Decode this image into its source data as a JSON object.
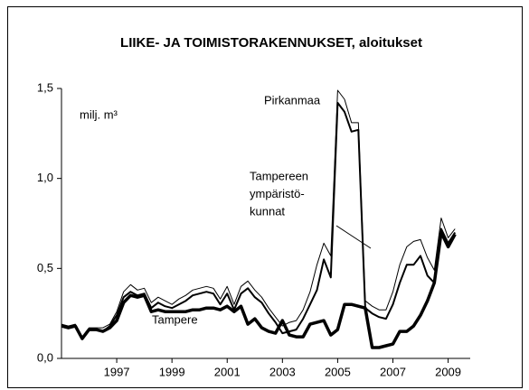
{
  "chart_data": {
    "type": "line",
    "title": "LIIKE- JA TOIMISTORAKENNUKSET, aloitukset",
    "y_unit": "milj. m³",
    "x": [
      1995,
      1995.25,
      1995.5,
      1995.75,
      1996,
      1996.25,
      1996.5,
      1996.75,
      1997,
      1997.25,
      1997.5,
      1997.75,
      1998,
      1998.25,
      1998.5,
      1998.75,
      1999,
      1999.25,
      1999.5,
      1999.75,
      2000,
      2000.25,
      2000.5,
      2000.75,
      2001,
      2001.25,
      2001.5,
      2001.75,
      2002,
      2002.25,
      2002.5,
      2002.75,
      2003,
      2003.25,
      2003.5,
      2003.75,
      2004,
      2004.25,
      2004.5,
      2004.75,
      2005,
      2005.25,
      2005.5,
      2005.75,
      2006,
      2006.25,
      2006.5,
      2006.75,
      2007,
      2007.25,
      2007.5,
      2007.75,
      2008,
      2008.25,
      2008.5,
      2008.75,
      2009,
      2009.25
    ],
    "series": [
      {
        "name": "Pirkanmaa",
        "color": "#000000",
        "width": 1,
        "values": [
          0.19,
          0.18,
          0.19,
          0.12,
          0.17,
          0.17,
          0.17,
          0.19,
          0.26,
          0.37,
          0.41,
          0.38,
          0.39,
          0.31,
          0.34,
          0.32,
          0.3,
          0.33,
          0.35,
          0.38,
          0.39,
          0.4,
          0.39,
          0.33,
          0.4,
          0.3,
          0.4,
          0.43,
          0.38,
          0.34,
          0.28,
          0.23,
          0.18,
          0.2,
          0.21,
          0.27,
          0.37,
          0.52,
          0.64,
          0.57,
          1.49,
          1.44,
          1.31,
          1.31,
          0.32,
          0.29,
          0.27,
          0.27,
          0.37,
          0.52,
          0.62,
          0.65,
          0.66,
          0.56,
          0.49,
          0.78,
          0.67,
          0.72
        ]
      },
      {
        "name": [
          "Tampereen",
          "ympäristö-",
          "kunnat"
        ],
        "color": "#000000",
        "width": 2,
        "values": [
          0.18,
          0.17,
          0.18,
          0.11,
          0.16,
          0.16,
          0.15,
          0.18,
          0.24,
          0.34,
          0.37,
          0.35,
          0.36,
          0.28,
          0.31,
          0.29,
          0.28,
          0.3,
          0.32,
          0.35,
          0.36,
          0.37,
          0.36,
          0.3,
          0.36,
          0.27,
          0.36,
          0.39,
          0.34,
          0.31,
          0.25,
          0.2,
          0.14,
          0.15,
          0.16,
          0.22,
          0.3,
          0.38,
          0.55,
          0.45,
          1.42,
          1.37,
          1.26,
          1.27,
          0.28,
          0.25,
          0.23,
          0.22,
          0.3,
          0.42,
          0.52,
          0.52,
          0.57,
          0.46,
          0.42,
          0.72,
          0.64,
          0.7
        ]
      },
      {
        "name": "Tampere",
        "color": "#000000",
        "width": 3.5,
        "values": [
          0.18,
          0.17,
          0.18,
          0.11,
          0.16,
          0.16,
          0.15,
          0.17,
          0.21,
          0.31,
          0.35,
          0.34,
          0.35,
          0.26,
          0.27,
          0.26,
          0.26,
          0.26,
          0.26,
          0.27,
          0.27,
          0.28,
          0.28,
          0.27,
          0.29,
          0.26,
          0.29,
          0.19,
          0.22,
          0.17,
          0.15,
          0.14,
          0.21,
          0.13,
          0.12,
          0.12,
          0.19,
          0.2,
          0.21,
          0.13,
          0.16,
          0.3,
          0.3,
          0.29,
          0.28,
          0.06,
          0.06,
          0.07,
          0.08,
          0.15,
          0.15,
          0.18,
          0.24,
          0.32,
          0.42,
          0.7,
          0.62,
          0.69
        ]
      }
    ],
    "xlim": [
      1995,
      2009.8
    ],
    "xticks": [
      1997,
      1999,
      2001,
      2003,
      2005,
      2007,
      2009
    ],
    "ylim": [
      0,
      1.5
    ],
    "yticks": [
      {
        "value": 0,
        "label": "0,0"
      },
      {
        "value": 0.5,
        "label": "0,5"
      },
      {
        "value": 1,
        "label": "1,0"
      },
      {
        "value": 1.5,
        "label": "1,5"
      }
    ],
    "grid": false
  }
}
